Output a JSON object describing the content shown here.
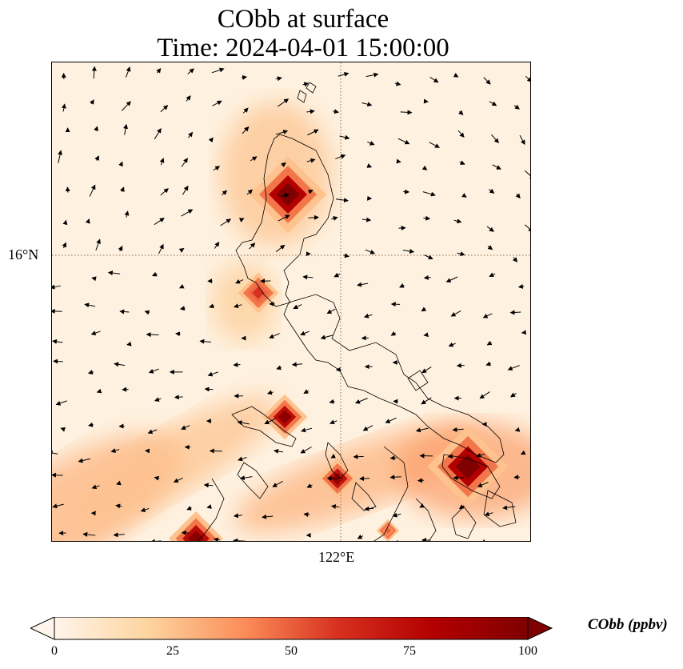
{
  "title": {
    "variable_line": "CObb at surface",
    "time_line": "Time: 2024-04-01 15:00:00"
  },
  "axes": {
    "lat_tick": "16°N",
    "lon_tick": "122°E"
  },
  "colorbar": {
    "label": "CObb (ppbv)",
    "ticks": [
      "0",
      "25",
      "50",
      "75",
      "100"
    ],
    "range": [
      0,
      100
    ],
    "extend": "both",
    "colors": [
      "#fff5eb",
      "#fdd49e",
      "#fc8d59",
      "#d7301f",
      "#b30000",
      "#7f0000"
    ]
  }
}
